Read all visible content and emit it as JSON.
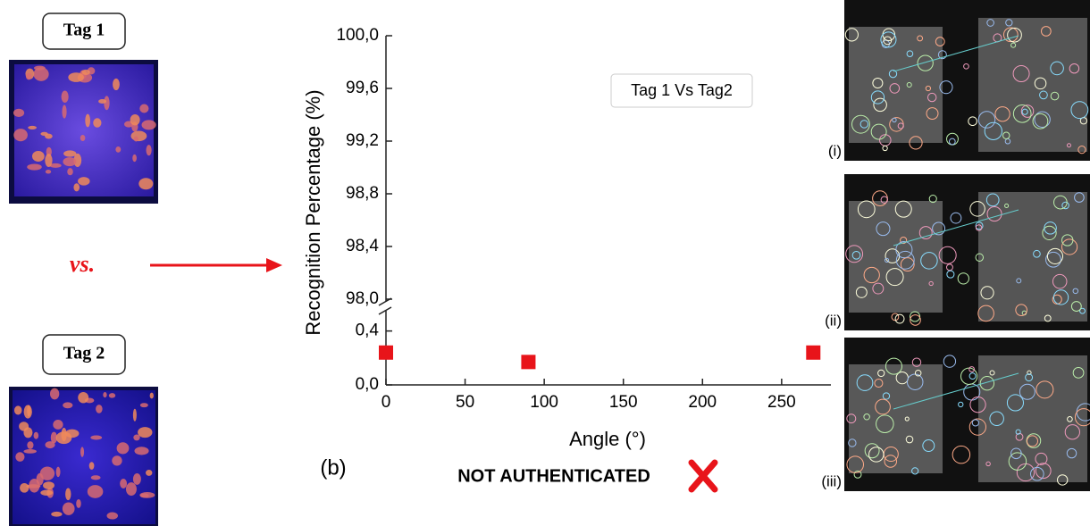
{
  "tags": [
    "Tag 1",
    "Tag 2"
  ],
  "vs": "vs.",
  "match_images": [
    "(i)",
    "(ii)",
    "(iii)"
  ],
  "chart_data": {
    "type": "scatter",
    "panel_label": "(b)",
    "annotation": "Tag 1 Vs Tag2",
    "verdict": "NOT AUTHENTICATED",
    "x_label": "Angle (°)",
    "y_label": "Recognition Percentage (%)",
    "x": [
      0,
      90,
      270
    ],
    "values": [
      0.24,
      0.17,
      0.24
    ],
    "color": "#e8141a",
    "xlim": [
      0,
      280
    ],
    "xticks": [
      0,
      50,
      100,
      150,
      200,
      250
    ],
    "ylim": [
      0,
      100
    ],
    "ybreak": [
      0.55,
      98
    ],
    "yticks": [
      {
        "value": 0,
        "label": "0,0"
      },
      {
        "value": 0.4,
        "label": "0,4"
      },
      {
        "value": 98,
        "label": "98,0"
      },
      {
        "value": 98.4,
        "label": "98,4"
      },
      {
        "value": 98.8,
        "label": "98,8"
      },
      {
        "value": 99.2,
        "label": "99,2"
      },
      {
        "value": 99.6,
        "label": "99,6"
      },
      {
        "value": 100,
        "label": "100,0"
      }
    ]
  }
}
